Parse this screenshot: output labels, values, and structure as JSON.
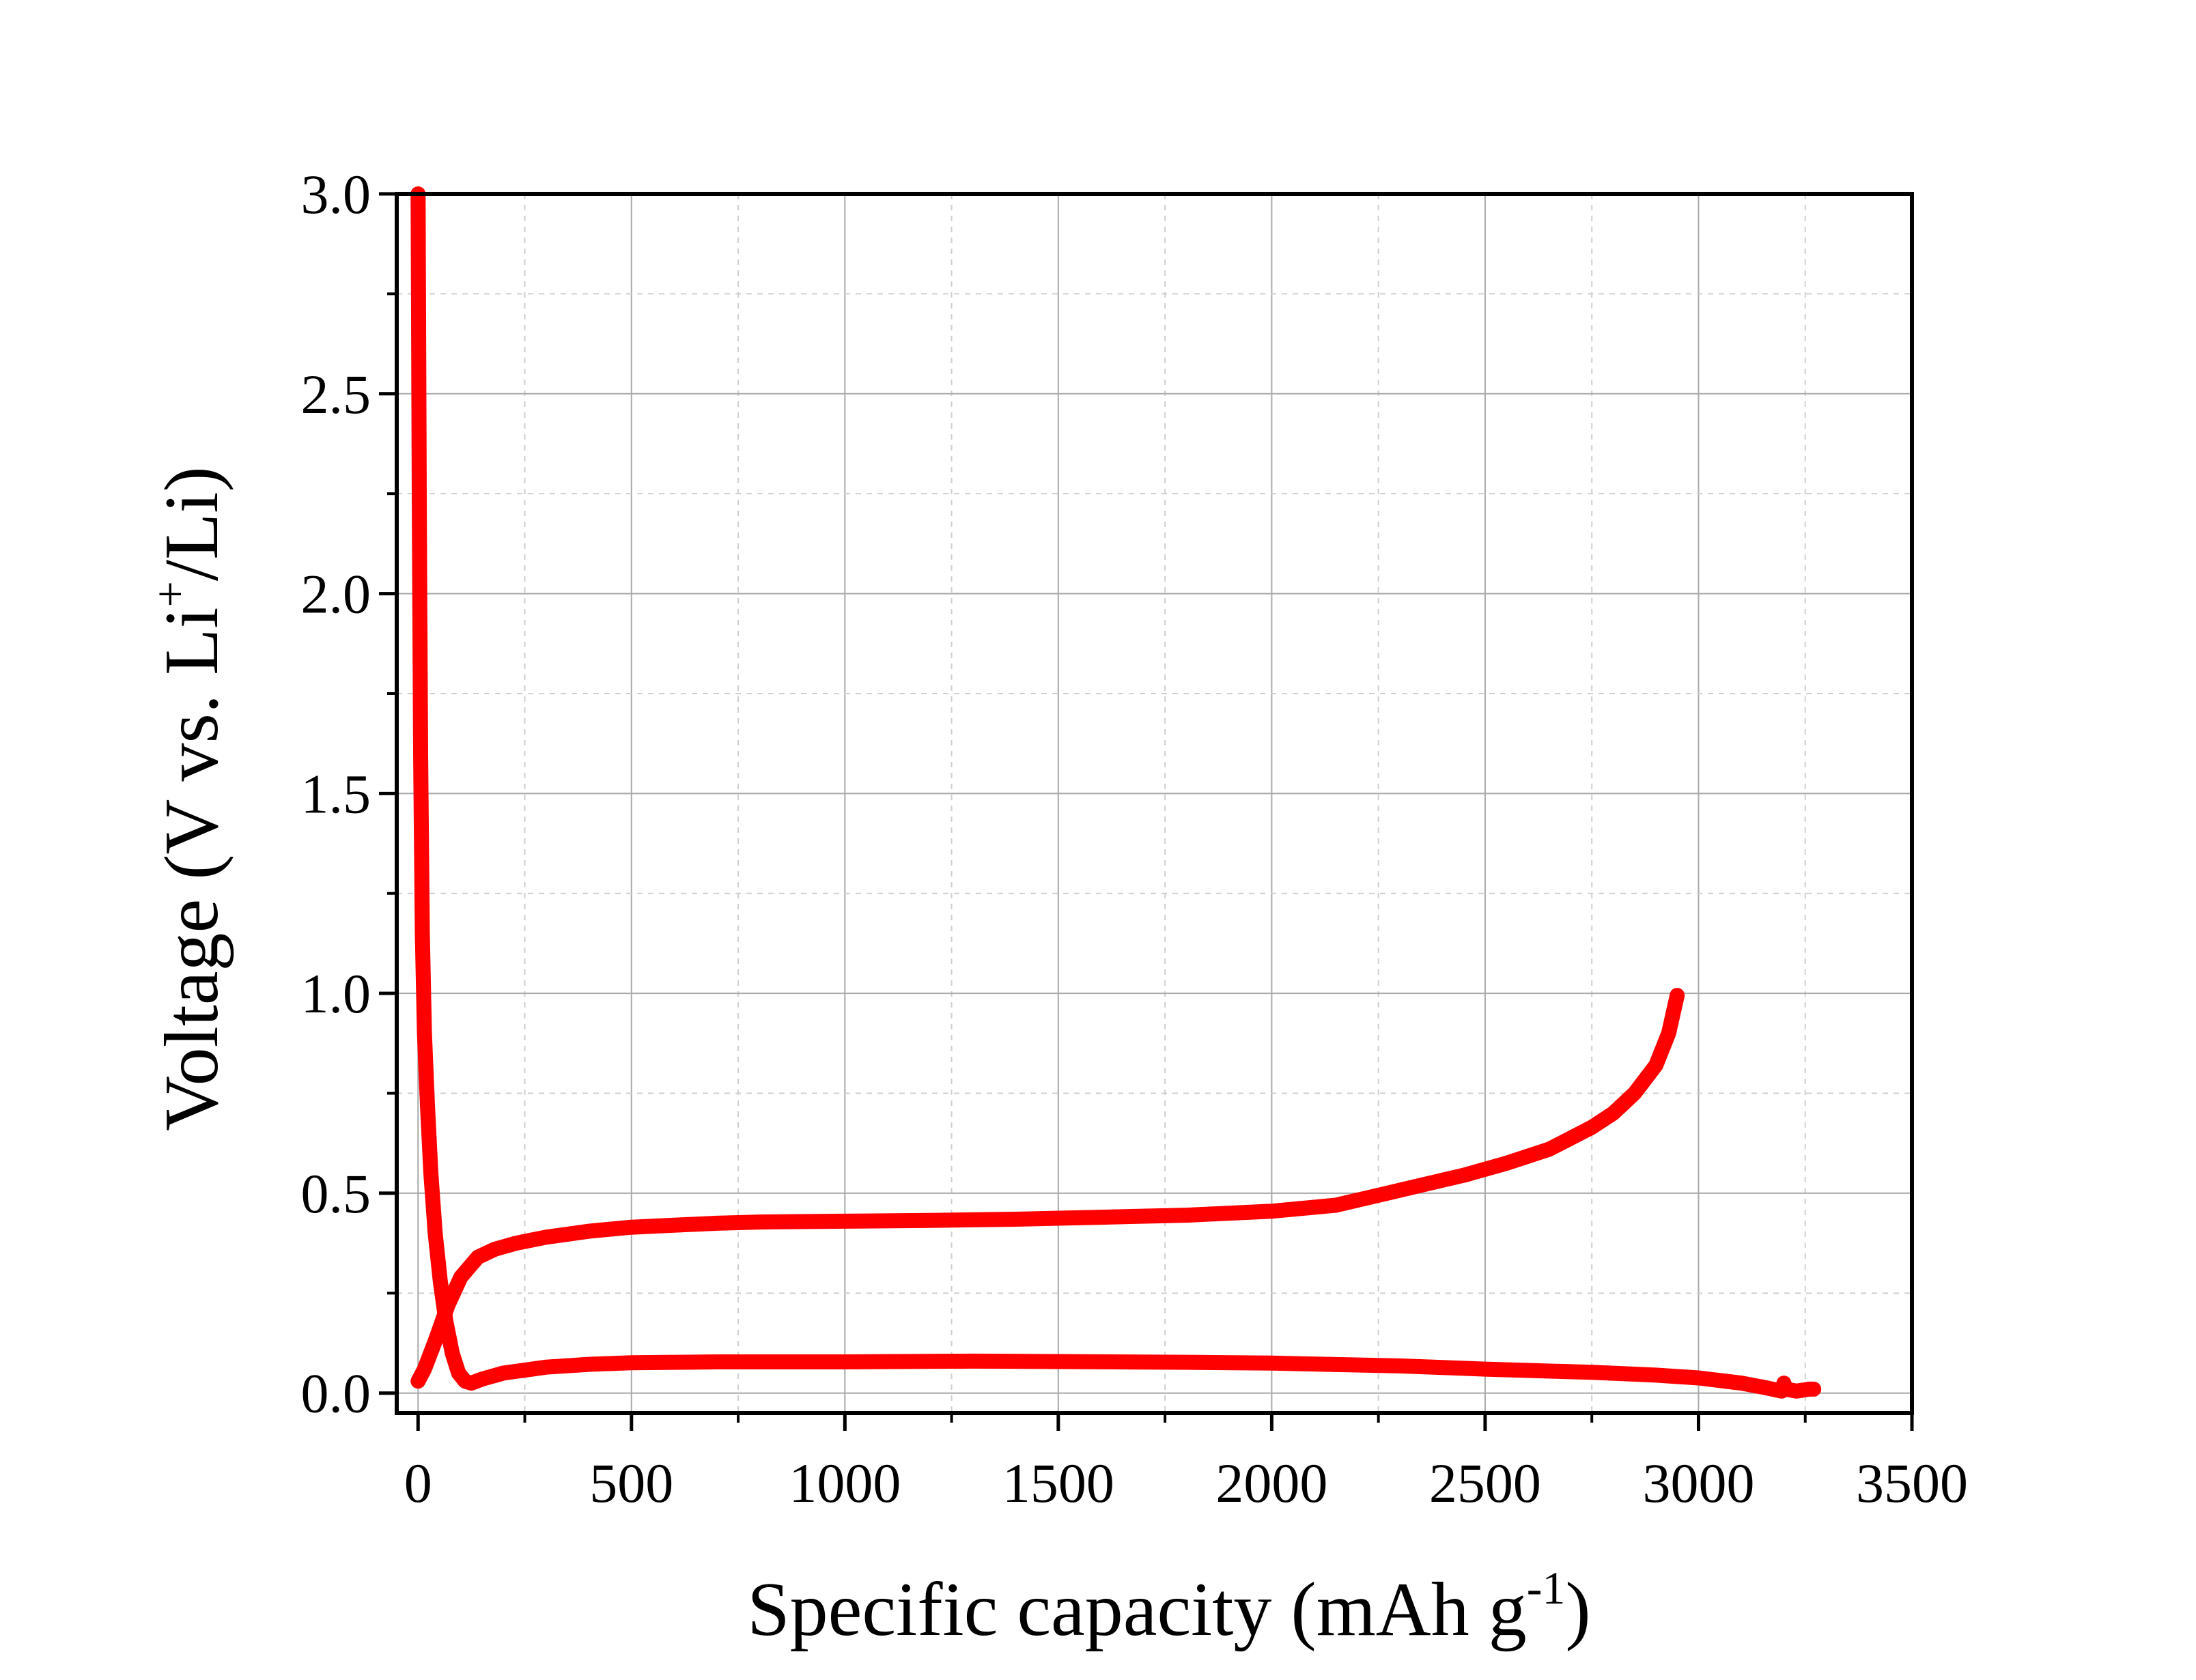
{
  "chart_data": {
    "type": "line",
    "title": "",
    "xlabel": {
      "text": "Specific capacity (mAh g",
      "superscript": "-1",
      "suffix": ")"
    },
    "ylabel": {
      "text": "Voltage (V vs. Li",
      "superscript": "+",
      "suffix": "/Li)"
    },
    "xlim": [
      -50,
      3500
    ],
    "ylim": [
      -0.05,
      3.0
    ],
    "x_ticks": [
      0,
      500,
      1000,
      1500,
      2000,
      2500,
      3000,
      3500
    ],
    "x_tick_labels": [
      "0",
      "500",
      "1000",
      "1500",
      "2000",
      "2500",
      "3000",
      "3500"
    ],
    "y_ticks": [
      0.0,
      0.5,
      1.0,
      1.5,
      2.0,
      2.5,
      3.0
    ],
    "y_tick_labels": [
      "0.0",
      "0.5",
      "1.0",
      "1.5",
      "2.0",
      "2.5",
      "3.0"
    ],
    "grid": true,
    "legend": "none",
    "series_color": "#ff0000",
    "series": [
      {
        "name": "",
        "x": [
          0,
          3,
          6,
          10,
          15,
          22,
          30,
          40,
          52,
          65,
          80,
          95,
          110,
          125,
          150,
          200,
          300,
          400,
          500,
          700,
          1000,
          1300,
          1500,
          1800,
          2000,
          2300,
          2500,
          2750,
          2900,
          3000,
          3100,
          3150,
          3195,
          3200,
          3205,
          3230,
          3260,
          3270
        ],
        "y": [
          3.0,
          2.2,
          1.6,
          1.15,
          0.9,
          0.72,
          0.55,
          0.4,
          0.28,
          0.18,
          0.1,
          0.05,
          0.03,
          0.025,
          0.035,
          0.05,
          0.065,
          0.072,
          0.076,
          0.078,
          0.078,
          0.08,
          0.079,
          0.077,
          0.075,
          0.068,
          0.06,
          0.052,
          0.045,
          0.038,
          0.025,
          0.015,
          0.005,
          0.025,
          0.01,
          0.005,
          0.01,
          0.01
        ]
      },
      {
        "name": "",
        "x": [
          0,
          15,
          40,
          70,
          100,
          140,
          180,
          230,
          300,
          400,
          500,
          600,
          700,
          800,
          1000,
          1200,
          1400,
          1600,
          1800,
          2000,
          2150,
          2250,
          2350,
          2450,
          2550,
          2650,
          2750,
          2800,
          2850,
          2900,
          2930,
          2950
        ],
        "y": [
          0.03,
          0.06,
          0.13,
          0.22,
          0.29,
          0.34,
          0.36,
          0.375,
          0.39,
          0.405,
          0.415,
          0.42,
          0.425,
          0.428,
          0.43,
          0.432,
          0.435,
          0.44,
          0.445,
          0.455,
          0.47,
          0.495,
          0.52,
          0.545,
          0.575,
          0.61,
          0.665,
          0.7,
          0.75,
          0.82,
          0.9,
          0.995
        ]
      }
    ]
  }
}
